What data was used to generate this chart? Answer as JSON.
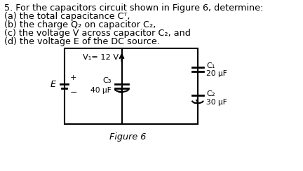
{
  "title_line1": "5. For the capacitors circuit shown in Figure 6, determine:",
  "line2": "(a) the total capacitance Cᵀ,",
  "line3": "(b) the charge Q₂ on capacitor C₂,",
  "line4": "(c) the voltage V across capacitor C₂, and",
  "line5": "(d) the voltage E of the DC source.",
  "figure_label": "Figure 6",
  "bg_color": "#ffffff",
  "text_color": "#000000",
  "font_size": 9.2,
  "line2_plain": "(a) the total capacitance CT,",
  "C1_label": "C₁",
  "C1_val": "20 μF",
  "C2_label": "C₂",
  "C2_val": "30 μF",
  "C3_label": "C₃",
  "C3_val": "40 μF",
  "V1_label": "V₁= 12 V",
  "E_label": "E"
}
